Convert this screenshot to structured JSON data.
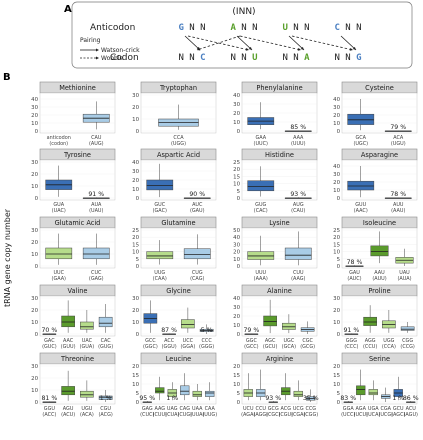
{
  "panel_a": {
    "label": "A",
    "anticodon_label": "Anticodon",
    "codon_label": "Codon",
    "inn_label": "(INN)",
    "legend_title": "Pairing",
    "legend_wc": "Watson-crick",
    "legend_wobble": "Wobble",
    "anticodons": [
      {
        "first": "G",
        "rest": "NN",
        "color": "#4a7fc1"
      },
      {
        "first": "A",
        "rest": "NN",
        "color": "#5aa02c"
      },
      {
        "first": "U",
        "rest": "NN",
        "color": "#5aa02c"
      },
      {
        "first": "C",
        "rest": "NN",
        "color": "#4a7fc1"
      }
    ],
    "codons": [
      {
        "rest": "NN",
        "last": "C",
        "color": "#4a7fc1"
      },
      {
        "rest": "NN",
        "last": "U",
        "color": "#5aa02c"
      },
      {
        "rest": "NN",
        "last": "A",
        "color": "#5aa02c"
      },
      {
        "rest": "NN",
        "last": "G",
        "color": "#4a7fc1"
      }
    ]
  },
  "panel_b_label": "B",
  "y_axis_label": "tRNA gene copy number",
  "colors": {
    "dark_blue": "#3a6fb5",
    "light_blue": "#a9cce6",
    "dark_green": "#5a9b2c",
    "light_green": "#b6dc8b"
  },
  "chart_data": [
    {
      "type": "box",
      "title": "Methionine",
      "ylim": [
        0,
        45
      ],
      "yticks": [
        0,
        10,
        20,
        30,
        40
      ],
      "boxes": [
        {
          "label": "anticodon",
          "label2": "(codon)",
          "color": "light_blue",
          "q1": null
        },
        {
          "label": "CAU",
          "label2": "(AUG)",
          "color": "light_blue",
          "min": 2,
          "q1": 11,
          "median": 16,
          "q3": 21,
          "max": 37
        }
      ],
      "pct": null
    },
    {
      "type": "box",
      "title": "Tryptophan",
      "ylim": [
        0,
        30
      ],
      "yticks": [
        0,
        10,
        20,
        30
      ],
      "boxes": [
        {
          "label": "CCA",
          "label2": "(UGG)",
          "color": "light_blue",
          "min": 1,
          "q1": 4,
          "median": 7,
          "q3": 10,
          "max": 22
        }
      ],
      "pct": null
    },
    {
      "type": "box",
      "title": "Phenylalanine",
      "ylim": [
        0,
        40
      ],
      "yticks": [
        0,
        10,
        20,
        30,
        40
      ],
      "boxes": [
        {
          "label": "GAA",
          "label2": "(UUC)",
          "color": "dark_blue",
          "min": 2,
          "q1": 7,
          "median": 11,
          "q3": 15,
          "max": 32
        },
        {
          "label": "AAA",
          "label2": "(UUU)",
          "color": "light_blue",
          "min": 0,
          "q1": 0,
          "median": 0,
          "q3": 0,
          "max": 0.5
        }
      ],
      "pct": "85 %"
    },
    {
      "type": "box",
      "title": "Cysteine",
      "ylim": [
        0,
        45
      ],
      "yticks": [
        0,
        10,
        20,
        30,
        40
      ],
      "boxes": [
        {
          "label": "GCA",
          "label2": "(UGC)",
          "color": "dark_blue",
          "min": 1,
          "q1": 8,
          "median": 14,
          "q3": 21,
          "max": 40
        },
        {
          "label": "ACA",
          "label2": "(UGU)",
          "color": "light_blue",
          "min": 0,
          "q1": 0,
          "median": 0,
          "q3": 0,
          "max": 0.5
        }
      ],
      "pct": "79 %"
    },
    {
      "type": "box",
      "title": "Tyrosine",
      "ylim": [
        0,
        30
      ],
      "yticks": [
        0,
        10,
        20,
        30
      ],
      "boxes": [
        {
          "label": "GUA",
          "label2": "(UAC)",
          "color": "dark_blue",
          "min": 1,
          "q1": 7,
          "median": 11,
          "q3": 15,
          "max": 27
        },
        {
          "label": "AUA",
          "label2": "(UAU)",
          "color": "light_blue",
          "min": 0,
          "q1": 0,
          "median": 0,
          "q3": 0,
          "max": 0.5
        }
      ],
      "pct": "91 %"
    },
    {
      "type": "box",
      "title": "Aspartic Acid",
      "ylim": [
        0,
        40
      ],
      "yticks": [
        0,
        10,
        20,
        30,
        40
      ],
      "boxes": [
        {
          "label": "GUC",
          "label2": "(GAC)",
          "color": "dark_blue",
          "min": 1,
          "q1": 9,
          "median": 14,
          "q3": 20,
          "max": 38
        },
        {
          "label": "AUC",
          "label2": "(GAU)",
          "color": "light_blue",
          "min": 0,
          "q1": 0,
          "median": 0,
          "q3": 0,
          "max": 0.5
        }
      ],
      "pct": "90 %"
    },
    {
      "type": "box",
      "title": "Histidine",
      "ylim": [
        0,
        25
      ],
      "yticks": [
        0,
        5,
        10,
        15,
        20,
        25
      ],
      "boxes": [
        {
          "label": "GUG",
          "label2": "(CAC)",
          "color": "dark_blue",
          "min": 1,
          "q1": 5,
          "median": 8,
          "q3": 12,
          "max": 22
        },
        {
          "label": "AUG",
          "label2": "(CAU)",
          "color": "light_blue",
          "min": 0,
          "q1": 0,
          "median": 0,
          "q3": 0,
          "max": 0.5
        }
      ],
      "pct": "93 %"
    },
    {
      "type": "box",
      "title": "Asparagine",
      "ylim": [
        0,
        45
      ],
      "yticks": [
        0,
        10,
        20,
        30,
        40
      ],
      "boxes": [
        {
          "label": "GUU",
          "label2": "(AAC)",
          "color": "dark_blue",
          "min": 1,
          "q1": 10,
          "median": 15,
          "q3": 21,
          "max": 40
        },
        {
          "label": "AUU",
          "label2": "(AAU)",
          "color": "light_blue",
          "min": 0,
          "q1": 0,
          "median": 0,
          "q3": 0,
          "max": 0.5
        }
      ],
      "pct": "78 %"
    },
    {
      "type": "box",
      "title": "Glutamic Acid",
      "ylim": [
        0,
        30
      ],
      "yticks": [
        0,
        10,
        20,
        30
      ],
      "boxes": [
        {
          "label": "UUC",
          "label2": "(GAA)",
          "color": "light_green",
          "min": 1,
          "q1": 6,
          "median": 10,
          "q3": 15,
          "max": 27
        },
        {
          "label": "CUC",
          "label2": "(GAG)",
          "color": "light_blue",
          "min": 1,
          "q1": 6,
          "median": 10,
          "q3": 15,
          "max": 27
        }
      ],
      "pct": null
    },
    {
      "type": "box",
      "title": "Glutamine",
      "ylim": [
        0,
        25
      ],
      "yticks": [
        0,
        5,
        10,
        15,
        20,
        25
      ],
      "boxes": [
        {
          "label": "UUG",
          "label2": "(CAA)",
          "color": "light_green",
          "min": 1,
          "q1": 5,
          "median": 7,
          "q3": 10,
          "max": 18
        },
        {
          "label": "CUG",
          "label2": "(CAG)",
          "color": "light_blue",
          "min": 1,
          "q1": 5,
          "median": 8,
          "q3": 12,
          "max": 22
        }
      ],
      "pct": null
    },
    {
      "type": "box",
      "title": "Lysine",
      "ylim": [
        0,
        50
      ],
      "yticks": [
        0,
        10,
        20,
        30,
        40,
        50
      ],
      "boxes": [
        {
          "label": "UUU",
          "label2": "(AAA)",
          "color": "light_green",
          "min": 1,
          "q1": 9,
          "median": 14,
          "q3": 20,
          "max": 42
        },
        {
          "label": "CUU",
          "label2": "(AAG)",
          "color": "light_blue",
          "min": 1,
          "q1": 9,
          "median": 15,
          "q3": 25,
          "max": 48
        }
      ],
      "pct": null
    },
    {
      "type": "box",
      "title": "Isoleucine",
      "ylim": [
        0,
        25
      ],
      "yticks": [
        0,
        5,
        10,
        15,
        20,
        25
      ],
      "boxes": [
        {
          "label": "GAU",
          "label2": "(AUC)",
          "color": "light_blue",
          "min": 0,
          "q1": 0,
          "median": 0,
          "q3": 0,
          "max": 0.5
        },
        {
          "label": "AAU",
          "label2": "(AUU)",
          "color": "dark_green",
          "min": 2,
          "q1": 7,
          "median": 10,
          "q3": 14,
          "max": 24
        },
        {
          "label": "UAU",
          "label2": "(AUA)",
          "color": "light_green",
          "min": 0,
          "q1": 2,
          "median": 4,
          "q3": 6,
          "max": 12
        }
      ],
      "pct": "78 %",
      "pct_box": 0
    },
    {
      "type": "box",
      "title": "Valine",
      "ylim": [
        0,
        30
      ],
      "yticks": [
        0,
        10,
        20,
        30
      ],
      "boxes": [
        {
          "label": "GAC",
          "label2": "(GUC)",
          "color": "light_blue",
          "min": 0,
          "q1": 0,
          "median": 0,
          "q3": 0,
          "max": 0.5
        },
        {
          "label": "AAC",
          "label2": "(GUU)",
          "color": "dark_green",
          "min": 1,
          "q1": 6,
          "median": 10,
          "q3": 15,
          "max": 28
        },
        {
          "label": "UAC",
          "label2": "(GUA)",
          "color": "light_green",
          "min": 1,
          "q1": 4,
          "median": 6,
          "q3": 10,
          "max": 20
        },
        {
          "label": "CAC",
          "label2": "(GUG)",
          "color": "light_blue",
          "min": 1,
          "q1": 6,
          "median": 9,
          "q3": 14,
          "max": 25
        }
      ],
      "pct": "70 %",
      "pct_box": 0
    },
    {
      "type": "box",
      "title": "Glycine",
      "ylim": [
        0,
        30
      ],
      "yticks": [
        0,
        10,
        20,
        30
      ],
      "boxes": [
        {
          "label": "GCC",
          "label2": "(GGC)",
          "color": "dark_blue",
          "min": 1,
          "q1": 9,
          "median": 13,
          "q3": 17,
          "max": 28
        },
        {
          "label": "ACC",
          "label2": "(GGU)",
          "color": "light_blue",
          "min": 0,
          "q1": 0,
          "median": 0,
          "q3": 0,
          "max": 0.5
        },
        {
          "label": "UCC",
          "label2": "(GGA)",
          "color": "light_green",
          "min": 1,
          "q1": 5,
          "median": 8,
          "q3": 12,
          "max": 22
        },
        {
          "label": "CCC",
          "label2": "(GGG)",
          "color": "light_blue",
          "min": 0,
          "q1": 2,
          "median": 3,
          "q3": 4,
          "max": 8
        }
      ],
      "pct": "87 %",
      "pct_box": 1,
      "pct2": "5 %",
      "pct2_box": 3
    },
    {
      "type": "box",
      "title": "Alanine",
      "ylim": [
        0,
        40
      ],
      "yticks": [
        0,
        10,
        20,
        30,
        40
      ],
      "boxes": [
        {
          "label": "GGC",
          "label2": "(GCC)",
          "color": "light_blue",
          "min": 0,
          "q1": 0,
          "median": 0,
          "q3": 0,
          "max": 0.5
        },
        {
          "label": "AGC",
          "label2": "(GCU)",
          "color": "dark_green",
          "min": 1,
          "q1": 9,
          "median": 14,
          "q3": 20,
          "max": 38
        },
        {
          "label": "UGC",
          "label2": "(GCA)",
          "color": "light_green",
          "min": 1,
          "q1": 5,
          "median": 8,
          "q3": 12,
          "max": 22
        },
        {
          "label": "CGC",
          "label2": "(GCG)",
          "color": "light_blue",
          "min": 0,
          "q1": 3,
          "median": 5,
          "q3": 7,
          "max": 14
        }
      ],
      "pct": "79 %",
      "pct_box": 0
    },
    {
      "type": "box",
      "title": "Proline",
      "ylim": [
        0,
        30
      ],
      "yticks": [
        0,
        10,
        20,
        30
      ],
      "boxes": [
        {
          "label": "GGG",
          "label2": "(CCC)",
          "color": "light_blue",
          "min": 0,
          "q1": 0,
          "median": 0,
          "q3": 0,
          "max": 0.5
        },
        {
          "label": "AGG",
          "label2": "(CCU)",
          "color": "dark_green",
          "min": 1,
          "q1": 7,
          "median": 10,
          "q3": 14,
          "max": 24
        },
        {
          "label": "UGG",
          "label2": "(CCA)",
          "color": "light_green",
          "min": 1,
          "q1": 5,
          "median": 8,
          "q3": 11,
          "max": 20
        },
        {
          "label": "CGG",
          "label2": "(CCG)",
          "color": "light_blue",
          "min": 1,
          "q1": 3,
          "median": 4,
          "q3": 6,
          "max": 10
        }
      ],
      "pct": "91 %",
      "pct_box": 0
    },
    {
      "type": "box",
      "title": "Threonine",
      "ylim": [
        0,
        30
      ],
      "yticks": [
        0,
        10,
        20,
        30
      ],
      "boxes": [
        {
          "label": "GGU",
          "label2": "(ACC)",
          "color": "light_blue",
          "min": 0,
          "q1": 0,
          "median": 0,
          "q3": 0,
          "max": 0.5
        },
        {
          "label": "AGU",
          "label2": "(ACU)",
          "color": "dark_green",
          "min": 1,
          "q1": 6,
          "median": 9,
          "q3": 13,
          "max": 26
        },
        {
          "label": "UGU",
          "label2": "(ACA)",
          "color": "light_green",
          "min": 1,
          "q1": 4,
          "median": 6,
          "q3": 9,
          "max": 18
        },
        {
          "label": "CGU",
          "label2": "(ACG)",
          "color": "light_blue",
          "min": 0,
          "q1": 2,
          "median": 4,
          "q3": 5,
          "max": 10
        }
      ],
      "pct": "81 %",
      "pct_box": 0,
      "pct2": "1 %",
      "pct2_box": 3
    },
    {
      "type": "box",
      "title": "Leucine",
      "ylim": [
        0,
        20
      ],
      "yticks": [
        0,
        5,
        10,
        15,
        20
      ],
      "boxes": [
        {
          "label": "GAG",
          "label2": "(CUC)",
          "color": "light_blue",
          "min": 0,
          "q1": 0,
          "median": 0,
          "q3": 0,
          "max": 0.5
        },
        {
          "label": "AAG",
          "label2": "(CUU)",
          "color": "dark_green",
          "min": 1,
          "q1": 5,
          "median": 6,
          "q3": 8,
          "max": 14
        },
        {
          "label": "UAG",
          "label2": "(CUA)",
          "color": "light_green",
          "min": 1,
          "q1": 3,
          "median": 5,
          "q3": 7,
          "max": 11
        },
        {
          "label": "CAG",
          "label2": "(CUG)",
          "color": "light_blue",
          "min": 1,
          "q1": 4,
          "median": 6,
          "q3": 9,
          "max": 16
        },
        {
          "label": "UAA",
          "label2": "(UUA)",
          "color": "light_green",
          "min": 1,
          "q1": 3,
          "median": 4,
          "q3": 6,
          "max": 10
        },
        {
          "label": "CAA",
          "label2": "(UUG)",
          "color": "light_blue",
          "min": 1,
          "q1": 3,
          "median": 5,
          "q3": 6,
          "max": 11
        }
      ],
      "pct": "95 %",
      "pct_box": 0,
      "pct2": "1 %",
      "pct2_box": 2
    },
    {
      "type": "box",
      "title": "Arginine",
      "ylim": [
        0,
        20
      ],
      "yticks": [
        0,
        5,
        10,
        15,
        20
      ],
      "boxes": [
        {
          "label": "UCU",
          "label2": "(AGA)",
          "color": "light_green",
          "min": 1,
          "q1": 3,
          "median": 5,
          "q3": 7,
          "max": 16
        },
        {
          "label": "CCU",
          "label2": "(AGG)",
          "color": "light_blue",
          "min": 1,
          "q1": 3,
          "median": 5,
          "q3": 7,
          "max": 18
        },
        {
          "label": "GCG",
          "label2": "(CGC)",
          "color": "light_blue",
          "min": 0,
          "q1": 0,
          "median": 0,
          "q3": 0,
          "max": 0.5
        },
        {
          "label": "ACG",
          "label2": "(CGU)",
          "color": "dark_green",
          "min": 1,
          "q1": 4,
          "median": 6,
          "q3": 8,
          "max": 16
        },
        {
          "label": "UCG",
          "label2": "(CGA)",
          "color": "light_green",
          "min": 1,
          "q1": 3,
          "median": 4,
          "q3": 6,
          "max": 12
        },
        {
          "label": "CCG",
          "label2": "(CGG)",
          "color": "light_blue",
          "min": 0,
          "q1": 1,
          "median": 2,
          "q3": 3,
          "max": 7
        }
      ],
      "pct": "93 %",
      "pct_box": 2,
      "pct2": "35 %",
      "pct2_box": 5
    },
    {
      "type": "box",
      "title": "Serine",
      "ylim": [
        0,
        20
      ],
      "yticks": [
        0,
        5,
        10,
        15,
        20
      ],
      "boxes": [
        {
          "label": "UGA",
          "label2": "(UCA)",
          "color": "light_green",
          "min": 1,
          "q1": 4,
          "median": 5,
          "q3": 7,
          "max": 12
        },
        {
          "label": "CGA",
          "label2": "(UCG)",
          "color": "light_blue",
          "min": 0,
          "q1": 2,
          "median": 3,
          "q3": 4,
          "max": 8
        },
        {
          "label": "GCU",
          "label2": "(AGC)",
          "color": "dark_blue",
          "min": 1,
          "q1": 3,
          "median": 5,
          "q3": 7,
          "max": 14
        },
        {
          "label": "ACU",
          "label2": "(AGU)",
          "color": "light_blue",
          "min": 0,
          "q1": 0,
          "median": 0,
          "q3": 0,
          "max": 0.5
        },
        {
          "label": "GGA",
          "label2": "(UCC)",
          "color": "light_blue",
          "min": 0,
          "q1": 0,
          "median": 0,
          "q3": 0,
          "max": 0.5
        },
        {
          "label": "AGA",
          "label2": "(UCU)",
          "color": "dark_green",
          "min": 1,
          "q1": 4,
          "median": 7,
          "q3": 9,
          "max": 18
        }
      ],
      "order": [
        4,
        5,
        0,
        1,
        2,
        3
      ],
      "pct": "83 %",
      "pct_box": 4,
      "pct2": "1 %",
      "pct2_box": 2,
      "pct3": "86 %",
      "pct3_box": 3
    }
  ]
}
